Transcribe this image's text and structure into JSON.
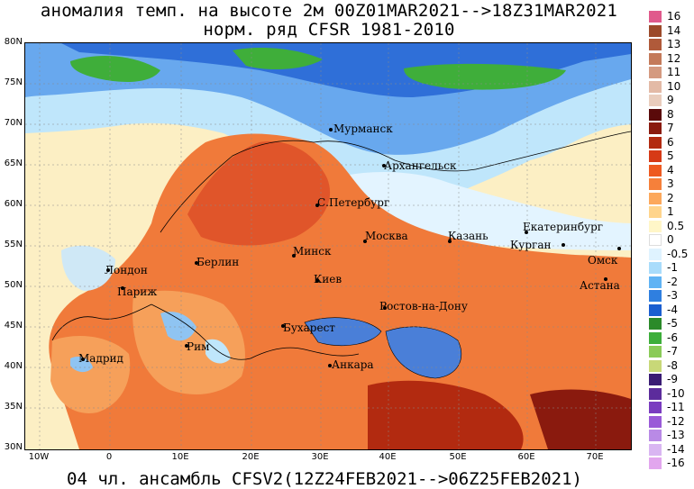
{
  "title": {
    "line1": "аномалия темп. на высоте 2м 00Z01MAR2021-->18Z31MAR2021",
    "line2": "норм. ряд CFSR 1981-2010"
  },
  "footer": "04 чл. ансамбль CFSV2(12Z24FEB2021-->06Z25FEB2021)",
  "axes": {
    "lat_labels": [
      "80N",
      "75N",
      "70N",
      "65N",
      "60N",
      "55N",
      "50N",
      "45N",
      "40N",
      "35N",
      "30N"
    ],
    "lon_labels": [
      "10W",
      "0",
      "10E",
      "20E",
      "30E",
      "40E",
      "50E",
      "60E",
      "70E"
    ]
  },
  "legend": {
    "labels": [
      "16",
      "14",
      "13",
      "12",
      "11",
      "10",
      "9",
      "8",
      "7",
      "6",
      "5",
      "4",
      "3",
      "2",
      "1",
      "0.5",
      "0",
      "-0.5",
      "-1",
      "-2",
      "-3",
      "-4",
      "-5",
      "-6",
      "-7",
      "-8",
      "-9",
      "-10",
      "-11",
      "-12",
      "-13",
      "-14",
      "-16"
    ],
    "colors": [
      "#e05a8c",
      "#9c4a2a",
      "#b05a3a",
      "#c47a5a",
      "#d49a80",
      "#e3baa6",
      "#e9cdbd",
      "#5a0a0a",
      "#8a1a0e",
      "#b22a10",
      "#d63a16",
      "#ee5a20",
      "#f6803a",
      "#fca85c",
      "#ffd48c",
      "#fff6c8",
      "#ffffff",
      "#dff3ff",
      "#a9dcfb",
      "#60b3f4",
      "#2f7fe0",
      "#1a5ed0",
      "#2b8a2a",
      "#3dae3a",
      "#8acb58",
      "#c8d878",
      "#3a1c74",
      "#5c2c9c",
      "#7a3cc0",
      "#9a5ad8",
      "#b98ae6",
      "#d9b6f2",
      "#e2a6ee"
    ]
  },
  "cities": [
    {
      "name": "Мурманск",
      "dot": true
    },
    {
      "name": "Архангельск",
      "dot": true
    },
    {
      "name": "С.Петербург",
      "dot": true
    },
    {
      "name": "Москва",
      "dot": true
    },
    {
      "name": "Казань",
      "dot": true
    },
    {
      "name": "Екатеринбург",
      "dot": true
    },
    {
      "name": "Курган",
      "dot": true
    },
    {
      "name": "Омск",
      "dot": true
    },
    {
      "name": "Астана",
      "dot": true
    },
    {
      "name": "Минск",
      "dot": true
    },
    {
      "name": "Киев",
      "dot": true
    },
    {
      "name": "Берлин",
      "dot": true
    },
    {
      "name": "Лондон",
      "dot": true
    },
    {
      "name": "Париж",
      "dot": true
    },
    {
      "name": "Мадрид",
      "dot": true
    },
    {
      "name": "Рим",
      "dot": true
    },
    {
      "name": "Бухарест",
      "dot": true
    },
    {
      "name": "Ростов-на-Дону",
      "dot": true
    },
    {
      "name": "Анкара",
      "dot": true
    }
  ],
  "colors": {
    "ocean_warm": "#fcefc4",
    "land_warm": "#f07a3a",
    "arctic_cold": "#bfe6fb",
    "arctic_deep": "#2f6fd8",
    "green_anomaly": "#3fae3a"
  }
}
